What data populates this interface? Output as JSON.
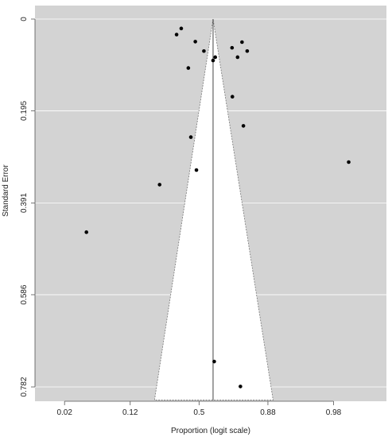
{
  "chart_data": {
    "type": "scatter",
    "subtype": "funnel-plot",
    "xlabel": "Proportion (logit scale)",
    "ylabel": "Standard Error",
    "x_scale": "logit",
    "y_reversed": true,
    "grid": true,
    "x_ticks": [
      {
        "value": 0.02,
        "label": "0.02"
      },
      {
        "value": 0.12,
        "label": "0.12"
      },
      {
        "value": 0.5,
        "label": "0.5"
      },
      {
        "value": 0.88,
        "label": "0.88"
      },
      {
        "value": 0.98,
        "label": "0.98"
      }
    ],
    "y_ticks": [
      {
        "value": 0,
        "label": "0"
      },
      {
        "value": 0.195,
        "label": "0.195"
      },
      {
        "value": 0.391,
        "label": "0.391"
      },
      {
        "value": 0.586,
        "label": "0.586"
      },
      {
        "value": 0.782,
        "label": "0.782"
      }
    ],
    "xlim": [
      0.0086,
      0.9956
    ],
    "ylim": [
      0.782,
      0
    ],
    "pooled_estimate": 0.6,
    "funnel_top_se": 0,
    "funnel_bottom_se": 0.81,
    "funnel_bottom_x": [
      0.216,
      0.895
    ],
    "points": [
      {
        "x": 0.343,
        "y": 0.033
      },
      {
        "x": 0.374,
        "y": 0.02
      },
      {
        "x": 0.473,
        "y": 0.048
      },
      {
        "x": 0.535,
        "y": 0.068
      },
      {
        "x": 0.423,
        "y": 0.104
      },
      {
        "x": 0.6,
        "y": 0.088
      },
      {
        "x": 0.615,
        "y": 0.081
      },
      {
        "x": 0.722,
        "y": 0.061
      },
      {
        "x": 0.753,
        "y": 0.081
      },
      {
        "x": 0.776,
        "y": 0.049
      },
      {
        "x": 0.801,
        "y": 0.068
      },
      {
        "x": 0.724,
        "y": 0.165
      },
      {
        "x": 0.783,
        "y": 0.227
      },
      {
        "x": 0.441,
        "y": 0.251
      },
      {
        "x": 0.481,
        "y": 0.321
      },
      {
        "x": 0.242,
        "y": 0.352
      },
      {
        "x": 0.037,
        "y": 0.453
      },
      {
        "x": 0.987,
        "y": 0.304
      },
      {
        "x": 0.608,
        "y": 0.728
      },
      {
        "x": 0.768,
        "y": 0.781
      }
    ],
    "colors": {
      "background": "#d3d3d3",
      "funnel": "#ffffff",
      "grid": "#ffffff",
      "points": "#000000",
      "axis": "#555555"
    }
  }
}
